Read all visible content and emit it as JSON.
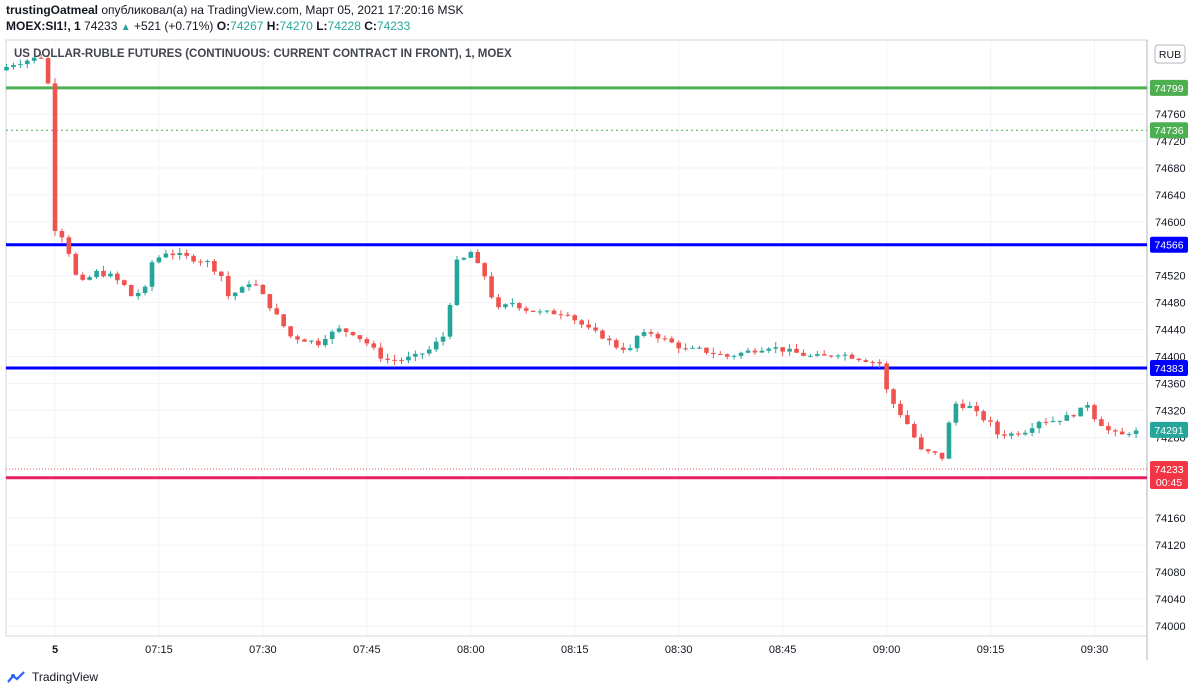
{
  "header": {
    "author": "trustingOatmeal",
    "published": "опубликовал(а) на TradingView.com, Март 05, 2021 17:20:16 MSK",
    "symbol": "MOEX:SI1!, 1",
    "last": "74233",
    "change": "+521 (+0.71%)",
    "open_label": "O:",
    "open": "74267",
    "high_label": "H:",
    "high": "74270",
    "low_label": "L:",
    "low": "74228",
    "close_label": "C:",
    "close": "74233"
  },
  "footer": {
    "brand": "TradingView"
  },
  "colors": {
    "up": "#26a69a",
    "down": "#ef5350",
    "green_line": "#4caf50",
    "blue_line": "#0000ff",
    "red_line": "#e91e63",
    "grid": "#f0f3fa"
  },
  "chart_data": {
    "type": "candlestick",
    "title": "US DOLLAR-RUBLE FUTURES (CONTINUOUS: CURRENT CONTRACT IN FRONT), 1, MOEX",
    "currency": "RUB",
    "ylim": [
      73985,
      74870
    ],
    "y_ticks": [
      74760,
      74720,
      74680,
      74640,
      74600,
      74520,
      74480,
      74440,
      74400,
      74360,
      74320,
      74280,
      74160,
      74120,
      74080,
      74040,
      74000
    ],
    "x_ticks": [
      "5",
      "07:15",
      "07:30",
      "07:45",
      "08:00",
      "08:15",
      "08:30",
      "08:45",
      "09:00",
      "09:15",
      "09:30"
    ],
    "x_tick_minutes": [
      0,
      15,
      30,
      45,
      60,
      75,
      90,
      105,
      120,
      135,
      150
    ],
    "levels": [
      {
        "value": 74799,
        "label": "74799",
        "color": "#4caf50",
        "style": "solid"
      },
      {
        "value": 74736,
        "label": "74736",
        "color": "#4caf50",
        "style": "dotted"
      },
      {
        "value": 74566,
        "label": "74566",
        "color": "#0000ff",
        "style": "solid"
      },
      {
        "value": 74383,
        "label": "74383",
        "color": "#0000ff",
        "style": "solid"
      },
      {
        "value": 74220,
        "label": "74220",
        "color": "#e91e63",
        "style": "solid"
      }
    ],
    "current_price": {
      "value": 74233,
      "label": "74233",
      "timer": "00:45"
    },
    "marker_price": {
      "value": 74291,
      "label": "74291"
    },
    "waypoints": [
      [
        -7,
        74825
      ],
      [
        -5,
        74835
      ],
      [
        -3,
        74840
      ],
      [
        -1,
        74845
      ],
      [
        0,
        74805
      ],
      [
        1,
        74590
      ],
      [
        2,
        74580
      ],
      [
        3,
        74555
      ],
      [
        4,
        74520
      ],
      [
        5,
        74510
      ],
      [
        7,
        74525
      ],
      [
        9,
        74520
      ],
      [
        11,
        74505
      ],
      [
        12,
        74490
      ],
      [
        14,
        74500
      ],
      [
        15,
        74540
      ],
      [
        17,
        74555
      ],
      [
        19,
        74550
      ],
      [
        21,
        74545
      ],
      [
        23,
        74540
      ],
      [
        25,
        74520
      ],
      [
        26,
        74490
      ],
      [
        28,
        74500
      ],
      [
        29,
        74510
      ],
      [
        30,
        74505
      ],
      [
        31,
        74490
      ],
      [
        33,
        74460
      ],
      [
        35,
        74430
      ],
      [
        37,
        74425
      ],
      [
        39,
        74420
      ],
      [
        40,
        74430
      ],
      [
        42,
        74440
      ],
      [
        44,
        74435
      ],
      [
        46,
        74420
      ],
      [
        48,
        74400
      ],
      [
        49,
        74395
      ],
      [
        51,
        74395
      ],
      [
        53,
        74400
      ],
      [
        55,
        74410
      ],
      [
        57,
        74430
      ],
      [
        58,
        74480
      ],
      [
        59,
        74540
      ],
      [
        60,
        74545
      ],
      [
        61,
        74555
      ],
      [
        62,
        74535
      ],
      [
        63,
        74520
      ],
      [
        64,
        74490
      ],
      [
        65,
        74470
      ],
      [
        67,
        74480
      ],
      [
        69,
        74470
      ],
      [
        71,
        74465
      ],
      [
        73,
        74465
      ],
      [
        75,
        74465
      ],
      [
        76,
        74455
      ],
      [
        78,
        74440
      ],
      [
        80,
        74430
      ],
      [
        82,
        74415
      ],
      [
        84,
        74410
      ],
      [
        85,
        74430
      ],
      [
        87,
        74435
      ],
      [
        89,
        74425
      ],
      [
        90,
        74420
      ],
      [
        92,
        74410
      ],
      [
        94,
        74410
      ],
      [
        96,
        74405
      ],
      [
        98,
        74400
      ],
      [
        100,
        74405
      ],
      [
        102,
        74410
      ],
      [
        104,
        74415
      ],
      [
        106,
        74410
      ],
      [
        108,
        74405
      ],
      [
        110,
        74400
      ],
      [
        112,
        74400
      ],
      [
        114,
        74405
      ],
      [
        116,
        74400
      ],
      [
        118,
        74395
      ],
      [
        120,
        74390
      ],
      [
        121,
        74350
      ],
      [
        122,
        74330
      ],
      [
        124,
        74300
      ],
      [
        126,
        74260
      ],
      [
        128,
        74255
      ],
      [
        129,
        74250
      ],
      [
        130,
        74300
      ],
      [
        131,
        74330
      ],
      [
        133,
        74325
      ],
      [
        134,
        74315
      ],
      [
        136,
        74300
      ],
      [
        137,
        74285
      ],
      [
        139,
        74285
      ],
      [
        141,
        74290
      ],
      [
        143,
        74305
      ],
      [
        145,
        74305
      ],
      [
        147,
        74310
      ],
      [
        149,
        74320
      ],
      [
        150,
        74330
      ],
      [
        151,
        74310
      ],
      [
        153,
        74290
      ],
      [
        154,
        74285
      ],
      [
        155,
        74283
      ],
      [
        156,
        74288
      ]
    ]
  }
}
